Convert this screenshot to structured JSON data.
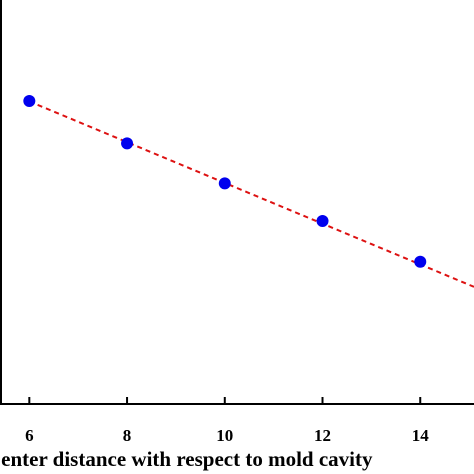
{
  "chart_data": {
    "type": "scatter",
    "title": "",
    "xlabel": "Center distance with respect to mold cavity",
    "ylabel": "",
    "xlim": [
      5.4,
      15.1
    ],
    "ylim": [
      0,
      1
    ],
    "grid": false,
    "legend": "none",
    "x_ticks": [
      6,
      8,
      10,
      12,
      14
    ],
    "x_tick_labels": [
      "6",
      "8",
      "10",
      "12",
      "14"
    ],
    "points": {
      "x": [
        6,
        8,
        10,
        12,
        14
      ],
      "y": [
        0.75,
        0.645,
        0.546,
        0.453,
        0.352
      ],
      "color": "#0000ee"
    },
    "fit_line": {
      "style": "dashed",
      "color": "#dd1111",
      "x": [
        6,
        15.1
      ],
      "y": [
        0.749,
        0.29
      ]
    }
  }
}
